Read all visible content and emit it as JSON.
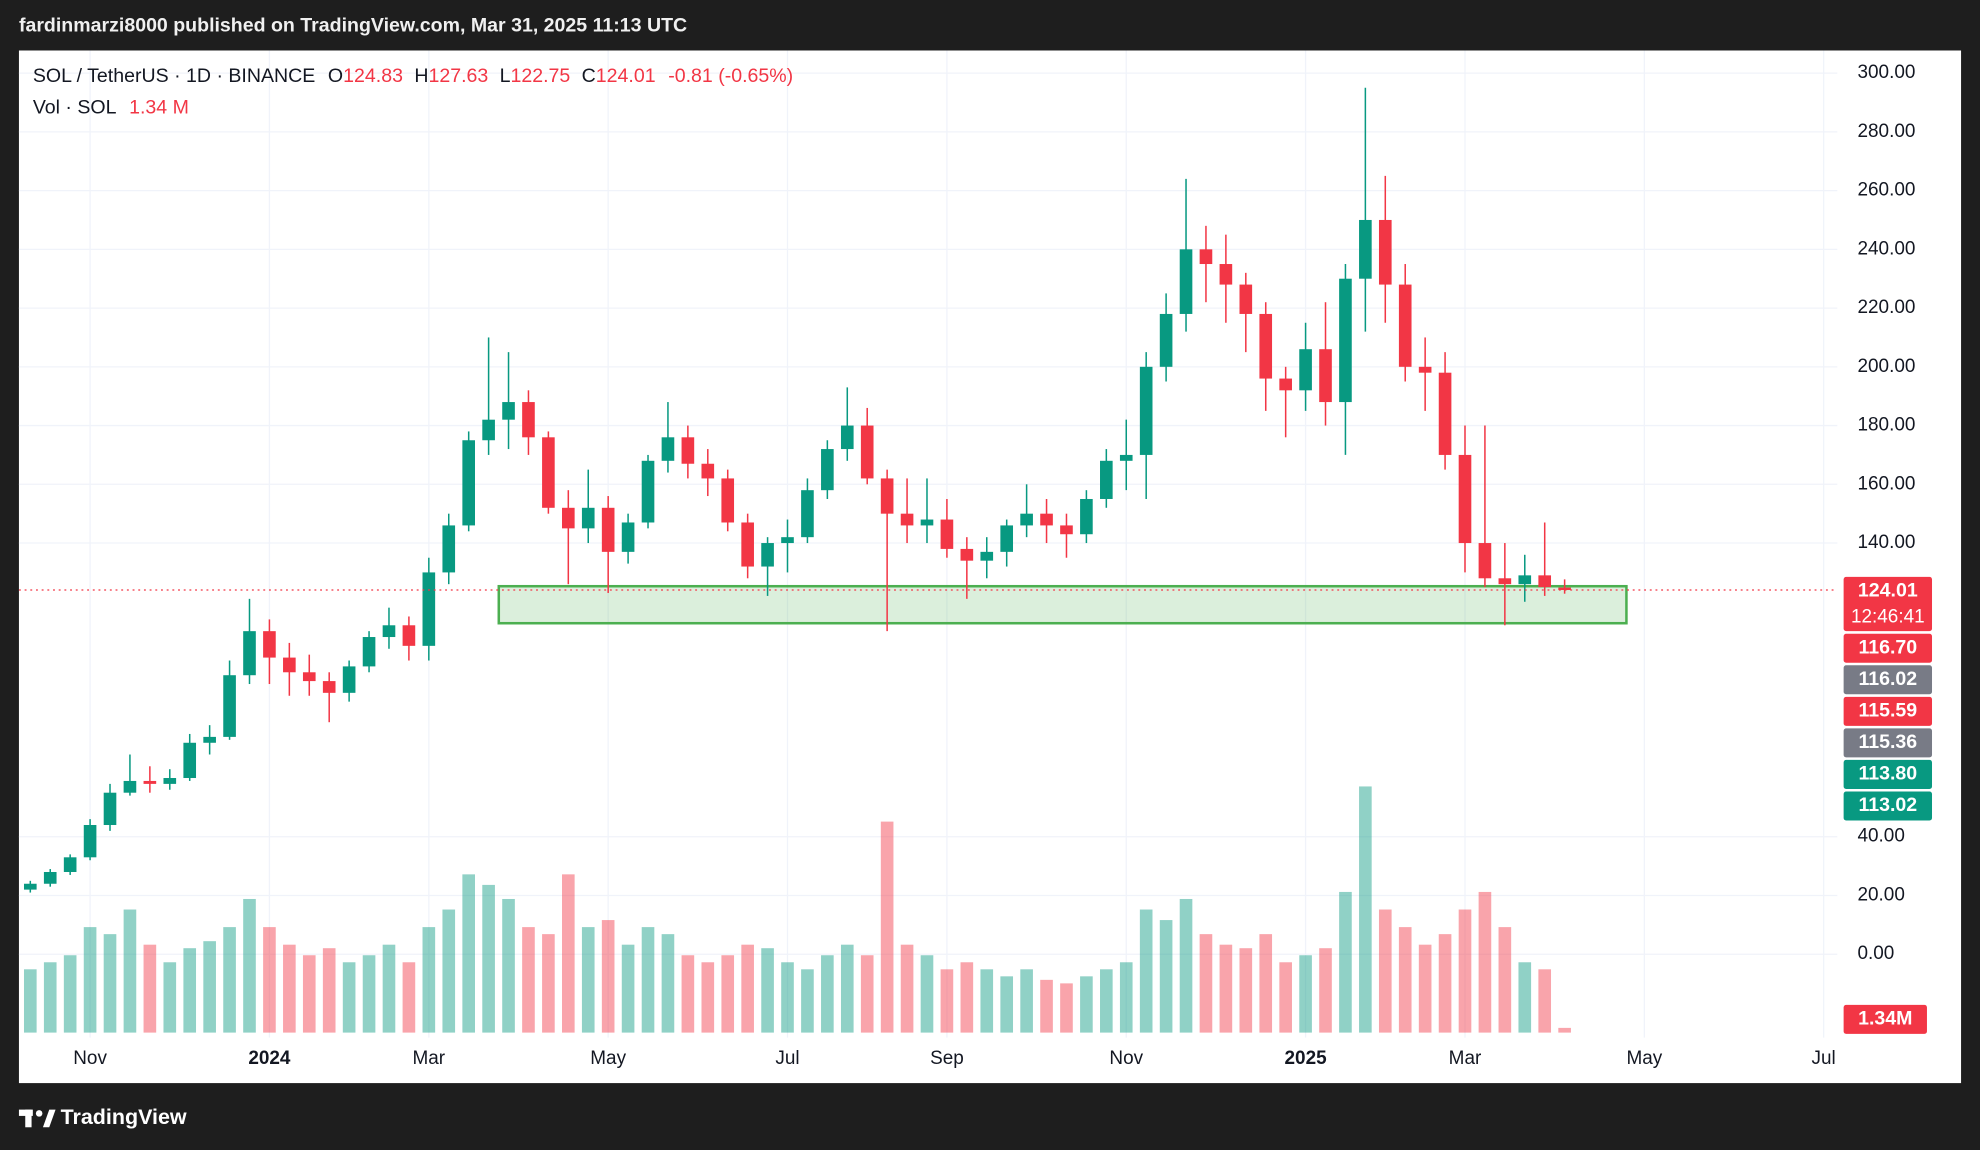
{
  "header": {
    "publisher": "fardinmarzi8000 published on TradingView.com, Mar 31, 2025 11:13 UTC"
  },
  "footer": {
    "brand": "TradingView"
  },
  "chart_data": {
    "type": "candlestick",
    "legend": {
      "symbol": "SOL / TetherUS · 1D · BINANCE",
      "ohlc": [
        {
          "key": "O",
          "value": "124.83"
        },
        {
          "key": "H",
          "value": "127.63"
        },
        {
          "key": "L",
          "value": "122.75"
        },
        {
          "key": "C",
          "value": "124.01"
        }
      ],
      "change": "-0.81 (-0.65%)"
    },
    "volume_legend": {
      "name": "Vol · SOL",
      "value": "1.34 M"
    },
    "categories": [
      null,
      null,
      null,
      "Nov",
      null,
      null,
      null,
      null,
      null,
      null,
      null,
      null,
      "2024",
      null,
      null,
      null,
      null,
      null,
      null,
      null,
      "Mar",
      null,
      null,
      null,
      null,
      null,
      null,
      null,
      null,
      "May",
      null,
      null,
      null,
      null,
      null,
      null,
      null,
      null,
      "Jul",
      null,
      null,
      null,
      null,
      null,
      null,
      null,
      "Sep",
      null,
      null,
      null,
      null,
      null,
      null,
      null,
      null,
      "Nov",
      null,
      null,
      null,
      null,
      null,
      null,
      null,
      null,
      "2025",
      null,
      null,
      null,
      null,
      null,
      null,
      null,
      "Mar",
      null,
      null,
      null,
      null,
      null,
      null,
      null,
      null,
      "May",
      null,
      null,
      null,
      null,
      null,
      null,
      null,
      null,
      "Jul",
      null,
      null
    ],
    "open": [
      22,
      24,
      28,
      33,
      44,
      55,
      59,
      58,
      60,
      72,
      74,
      95,
      110,
      101,
      96,
      93,
      89,
      98,
      108,
      112,
      105,
      130,
      146,
      175,
      182,
      188,
      176,
      152,
      145,
      152,
      137,
      147,
      168,
      176,
      167,
      162,
      147,
      132,
      140,
      142,
      158,
      172,
      180,
      162,
      150,
      146,
      148,
      138,
      134,
      137,
      146,
      150,
      146,
      143,
      155,
      168,
      170,
      200,
      218,
      240,
      235,
      228,
      218,
      196,
      192,
      206,
      188,
      230,
      250,
      228,
      200,
      198,
      170,
      140,
      128,
      126,
      129,
      124.83,
      null,
      null,
      null,
      null,
      null,
      null,
      null,
      null,
      null,
      null,
      null,
      null,
      null,
      null,
      null
    ],
    "high": [
      25,
      29,
      34,
      46,
      58,
      68,
      64,
      63,
      75,
      78,
      100,
      121,
      114,
      106,
      102,
      96,
      100,
      110,
      118,
      115,
      135,
      150,
      178,
      210,
      205,
      192,
      178,
      158,
      165,
      156,
      150,
      170,
      188,
      180,
      172,
      165,
      150,
      142,
      148,
      162,
      175,
      193,
      186,
      165,
      162,
      162,
      155,
      142,
      142,
      148,
      160,
      155,
      150,
      158,
      172,
      182,
      205,
      225,
      264,
      248,
      245,
      232,
      222,
      200,
      215,
      222,
      235,
      295,
      265,
      235,
      210,
      205,
      180,
      180,
      140,
      136,
      147,
      127.63,
      null,
      null,
      null,
      null,
      null,
      null,
      null,
      null,
      null,
      null,
      null,
      null,
      null,
      null,
      null
    ],
    "low": [
      21,
      23,
      27,
      32,
      42,
      54,
      55,
      56,
      59,
      68,
      73,
      92,
      92,
      88,
      88,
      79,
      86,
      96,
      104,
      100,
      100,
      126,
      144,
      170,
      172,
      170,
      150,
      126,
      140,
      123,
      133,
      145,
      164,
      162,
      156,
      144,
      128,
      122,
      130,
      140,
      155,
      168,
      160,
      110,
      140,
      140,
      135,
      121,
      128,
      132,
      142,
      140,
      135,
      140,
      152,
      158,
      155,
      195,
      212,
      222,
      215,
      205,
      185,
      176,
      185,
      180,
      170,
      212,
      215,
      195,
      185,
      165,
      130,
      125,
      112,
      120,
      122,
      122.75,
      null,
      null,
      null,
      null,
      null,
      null,
      null,
      null,
      null,
      null,
      null,
      null,
      null,
      null,
      null
    ],
    "close": [
      24,
      28,
      33,
      44,
      55,
      59,
      58,
      60,
      72,
      74,
      95,
      110,
      101,
      96,
      93,
      89,
      98,
      108,
      112,
      105,
      130,
      146,
      175,
      182,
      188,
      176,
      152,
      145,
      152,
      137,
      147,
      168,
      176,
      167,
      162,
      147,
      132,
      140,
      142,
      158,
      172,
      180,
      162,
      150,
      146,
      148,
      138,
      134,
      137,
      146,
      150,
      146,
      143,
      155,
      168,
      170,
      200,
      218,
      240,
      235,
      228,
      218,
      196,
      192,
      206,
      188,
      230,
      250,
      228,
      200,
      198,
      170,
      140,
      128,
      126,
      129,
      125,
      124.01,
      null,
      null,
      null,
      null,
      null,
      null,
      null,
      null,
      null,
      null,
      null,
      null,
      null,
      null,
      null
    ],
    "volume": [
      18,
      20,
      22,
      30,
      28,
      35,
      25,
      20,
      24,
      26,
      30,
      38,
      30,
      25,
      22,
      24,
      20,
      22,
      25,
      20,
      30,
      35,
      45,
      42,
      38,
      30,
      28,
      45,
      30,
      32,
      25,
      30,
      28,
      22,
      20,
      22,
      25,
      24,
      20,
      18,
      22,
      25,
      22,
      60,
      25,
      22,
      18,
      20,
      18,
      16,
      18,
      15,
      14,
      16,
      18,
      20,
      35,
      32,
      38,
      28,
      25,
      24,
      28,
      20,
      22,
      24,
      40,
      70,
      35,
      30,
      25,
      28,
      35,
      40,
      30,
      20,
      18,
      1.34,
      null,
      null,
      null,
      null,
      null,
      null,
      null,
      null,
      null,
      null,
      null,
      null,
      null,
      null,
      null
    ],
    "up_color": "#089981",
    "down_color": "#f23645",
    "ylim": [
      -28.4,
      307.7
    ],
    "yticks": [
      {
        "value": 300,
        "label": "300.00"
      },
      {
        "value": 280,
        "label": "280.00"
      },
      {
        "value": 260,
        "label": "260.00"
      },
      {
        "value": 240,
        "label": "240.00"
      },
      {
        "value": 220,
        "label": "220.00"
      },
      {
        "value": 200,
        "label": "200.00"
      },
      {
        "value": 180,
        "label": "180.00"
      },
      {
        "value": 160,
        "label": "160.00"
      },
      {
        "value": 140,
        "label": "140.00"
      },
      {
        "value": 40,
        "label": "40.00"
      },
      {
        "value": 20,
        "label": "20.00"
      },
      {
        "value": 0,
        "label": "0.00"
      }
    ],
    "grid": true,
    "support_zone": {
      "low": 112.7,
      "high": 125.3,
      "color": "#4caf50"
    },
    "price_labels": [
      {
        "label": "124.01",
        "sub": "12:46:41",
        "color": "#f23645"
      },
      {
        "label": "116.70",
        "color": "#f23645"
      },
      {
        "label": "116.02",
        "color": "#787b86"
      },
      {
        "label": "115.59",
        "color": "#f23645"
      },
      {
        "label": "115.36",
        "color": "#787b86"
      },
      {
        "label": "113.80",
        "color": "#089981"
      },
      {
        "label": "113.02",
        "color": "#089981"
      }
    ],
    "volume_tag": {
      "label": "1.34M",
      "color": "#f23645"
    }
  }
}
